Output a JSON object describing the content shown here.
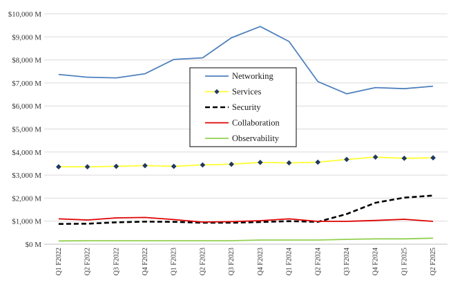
{
  "chart_data": {
    "type": "line",
    "title": "",
    "xlabel": "",
    "ylabel": "",
    "categories": [
      "Q1 F2022",
      "Q2 F2022",
      "Q3 F2022",
      "Q4 F2022",
      "Q1 F2023",
      "Q2 F2023",
      "Q3 F2023",
      "Q4 F2023",
      "Q1 F2024",
      "Q2 F2024",
      "Q3 F2024",
      "Q4 F2024",
      "Q1 F2025",
      "Q2 F2025"
    ],
    "ylim": [
      0,
      10000
    ],
    "yticks": [
      0,
      1000,
      2000,
      3000,
      4000,
      5000,
      6000,
      7000,
      8000,
      9000,
      10000
    ],
    "ytick_labels": [
      "$0 M",
      "$1,000 M",
      "$2,000 M",
      "$3,000 M",
      "$4,000 M",
      "$5,000 M",
      "$6,000 M",
      "$7,000 M",
      "$8,000 M",
      "$9,000 M",
      "$10,000 M"
    ],
    "grid": "horizontal",
    "legend_position": "center",
    "series": [
      {
        "name": "Networking",
        "color": "#4f81bd",
        "style": "solid",
        "marker": "none",
        "values": [
          7370,
          7250,
          7220,
          7400,
          8020,
          8090,
          8960,
          9450,
          8800,
          7060,
          6530,
          6800,
          6750,
          6860
        ]
      },
      {
        "name": "Services",
        "color": "#ffff33",
        "style": "solid",
        "marker": "diamond",
        "marker_color": "#1f3864",
        "values": [
          3360,
          3360,
          3380,
          3410,
          3380,
          3440,
          3470,
          3550,
          3530,
          3560,
          3680,
          3780,
          3730,
          3750
        ]
      },
      {
        "name": "Security",
        "color": "#000000",
        "style": "dashed",
        "marker": "none",
        "values": [
          880,
          890,
          950,
          980,
          970,
          930,
          930,
          960,
          1000,
          970,
          1310,
          1800,
          2020,
          2110
        ]
      },
      {
        "name": "Collaboration",
        "color": "#e00000",
        "style": "solid",
        "marker": "none",
        "values": [
          1100,
          1050,
          1140,
          1160,
          1070,
          960,
          980,
          1020,
          1100,
          990,
          990,
          1030,
          1080,
          990
        ]
      },
      {
        "name": "Observability",
        "color": "#92d050",
        "style": "solid",
        "marker": "none",
        "values": [
          140,
          150,
          150,
          150,
          150,
          150,
          150,
          180,
          180,
          180,
          210,
          230,
          230,
          260
        ]
      }
    ]
  },
  "colors": {
    "grid": "#d9d9d9",
    "legend_border": "#000000",
    "background": "#ffffff"
  }
}
